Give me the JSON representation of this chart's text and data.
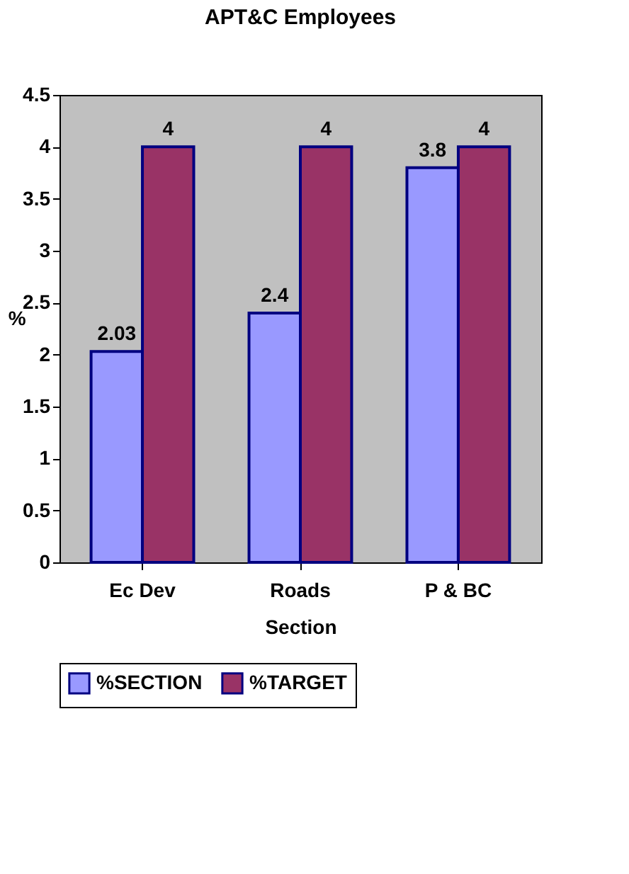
{
  "chart_data": {
    "type": "bar",
    "title": "APT&C Employees",
    "xlabel": "Section",
    "ylabel": "%",
    "categories": [
      "Ec Dev",
      "Roads",
      "P & BC"
    ],
    "series": [
      {
        "name": "%SECTION",
        "color": "#9999ff",
        "values": [
          2.03,
          2.4,
          3.8
        ]
      },
      {
        "name": "%TARGET",
        "color": "#993366",
        "values": [
          4,
          4,
          4
        ]
      }
    ],
    "ylim": [
      0,
      4.5
    ],
    "yticks": [
      0,
      0.5,
      1,
      1.5,
      2,
      2.5,
      3,
      3.5,
      4,
      4.5
    ],
    "grid": false,
    "legend": "bottom",
    "data_labels": true
  }
}
